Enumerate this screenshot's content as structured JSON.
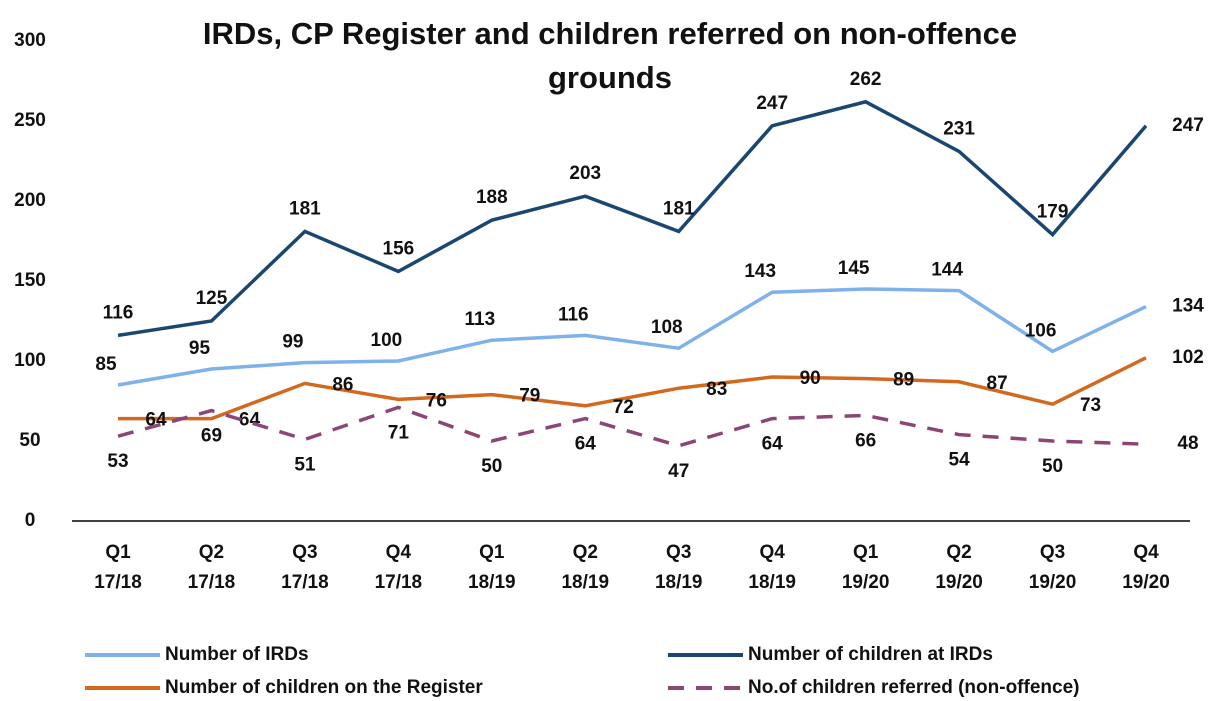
{
  "chart_data": {
    "type": "line",
    "title": "IRDs, CP Register and children referred on non-offence grounds",
    "categories": [
      [
        "Q1",
        "17/18"
      ],
      [
        "Q2",
        "17/18"
      ],
      [
        "Q3",
        "17/18"
      ],
      [
        "Q4",
        "17/18"
      ],
      [
        "Q1",
        "18/19"
      ],
      [
        "Q2",
        "18/19"
      ],
      [
        "Q3",
        "18/19"
      ],
      [
        "Q4",
        "18/19"
      ],
      [
        "Q1",
        "19/20"
      ],
      [
        "Q2",
        "19/20"
      ],
      [
        "Q3",
        "19/20"
      ],
      [
        "Q4",
        "19/20"
      ]
    ],
    "series": [
      {
        "name": "Number of IRDs",
        "color": "#7fb2ea",
        "values": [
          85,
          95,
          99,
          100,
          113,
          116,
          108,
          143,
          145,
          144,
          106,
          134
        ]
      },
      {
        "name": "Number of children at IRDs",
        "color": "#1c4672",
        "values": [
          116,
          125,
          181,
          156,
          188,
          203,
          181,
          247,
          262,
          231,
          179,
          247
        ]
      },
      {
        "name": "Number of children on the Register",
        "color": "#d2691e",
        "values": [
          64,
          64,
          86,
          76,
          79,
          72,
          83,
          90,
          89,
          87,
          73,
          102
        ]
      },
      {
        "name": "No.of children referred (non-offence)",
        "color": "#8b4675",
        "dashed": true,
        "values": [
          53,
          69,
          51,
          71,
          50,
          64,
          47,
          64,
          66,
          54,
          50,
          48
        ]
      }
    ],
    "ylim": [
      0,
      300
    ],
    "yticks": [
      0,
      50,
      100,
      150,
      200,
      250,
      300
    ],
    "grid": false
  }
}
